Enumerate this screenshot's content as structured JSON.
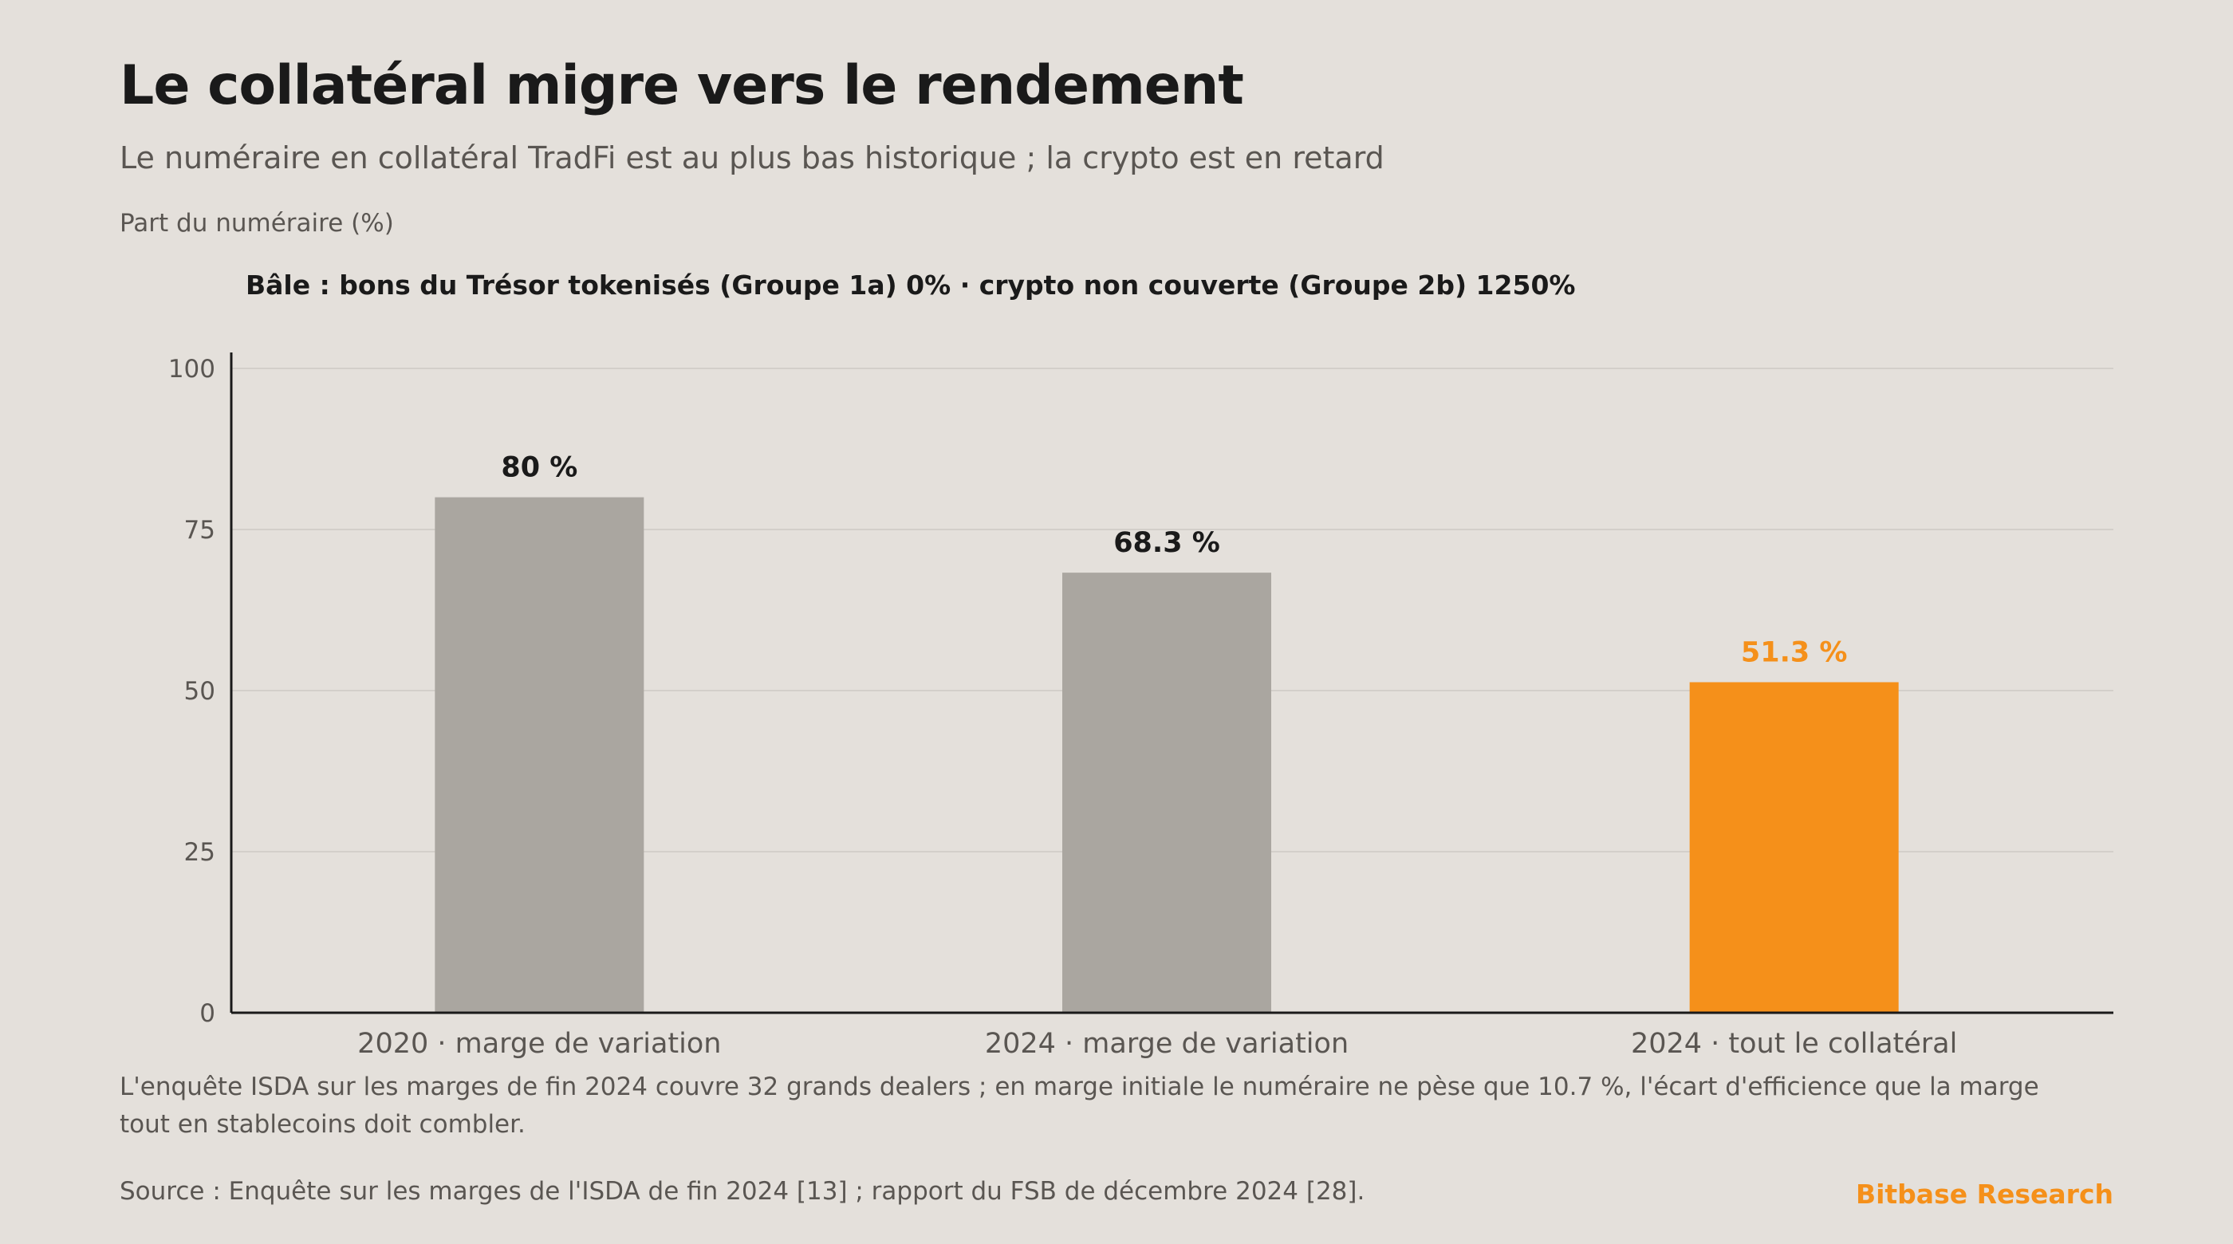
{
  "title": "Le collatéral migre vers le rendement",
  "subtitle": "Le numéraire en collatéral TradFi est au plus bas historique ; la crypto est en retard",
  "note": "L'enquête ISDA sur les marges de fin 2024 couvre 32 grands dealers ; en marge initiale le numéraire ne pèse que 10.7 %, l'écart d'efficience que la marge tout en stablecoins doit combler.",
  "source": "Source : Enquête sur les marges de l'ISDA de fin 2024 [13] ; rapport du FSB de décembre 2024 [28].",
  "brand": "Bitbase Research",
  "colors": {
    "background": "#e4e0db",
    "bar_default": "#aaa6a0",
    "bar_highlight": "#f5901a",
    "label_default": "#1a1a1a",
    "label_highlight": "#f5901a",
    "gridline": "#d3cfca",
    "axis": "#1a1a1a"
  },
  "chart_data": {
    "type": "bar",
    "title": "",
    "ylabel": "Part du numéraire (%)",
    "xlabel": "",
    "annotation": "Bâle : bons du Trésor tokenisés (Groupe 1a) 0% · crypto non couverte (Groupe 2b) 1250%",
    "categories": [
      "2020 · marge de variation",
      "2024 · marge de variation",
      "2024 · tout le collatéral"
    ],
    "values": [
      80,
      68.3,
      51.3
    ],
    "value_labels": [
      "80 %",
      "68.3 %",
      "51.3 %"
    ],
    "highlight_index": 2,
    "ylim": [
      0,
      100
    ],
    "yticks": [
      0,
      25,
      50,
      75,
      100
    ],
    "grid": true,
    "legend": "none"
  }
}
